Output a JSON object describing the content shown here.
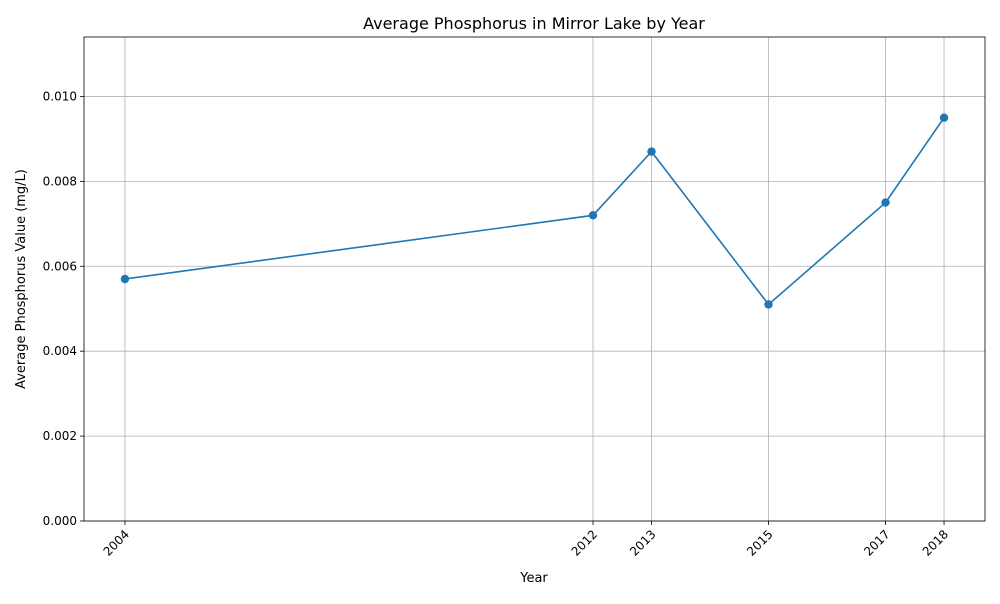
{
  "chart_data": {
    "type": "line",
    "title": "Average Phosphorus in Mirror Lake by Year",
    "xlabel": "Year",
    "ylabel": "Average Phosphorus Value (mg/L)",
    "x": [
      2004,
      2012,
      2013,
      2015,
      2017,
      2018
    ],
    "series": [
      {
        "values": [
          0.0057,
          0.0072,
          0.0087,
          0.0051,
          0.0075,
          0.0095
        ],
        "color": "#1f77b4",
        "marker": "circle"
      }
    ],
    "xlim": [
      2003.3,
      2018.7
    ],
    "ylim": [
      0,
      0.0114
    ],
    "x_ticks": [
      "2004",
      "2012",
      "2013",
      "2015",
      "2017",
      "2018"
    ],
    "y_ticks": [
      "0.000",
      "0.002",
      "0.004",
      "0.006",
      "0.008",
      "0.010"
    ],
    "x_tick_rotation": "45deg",
    "grid": true,
    "legend": "none"
  }
}
